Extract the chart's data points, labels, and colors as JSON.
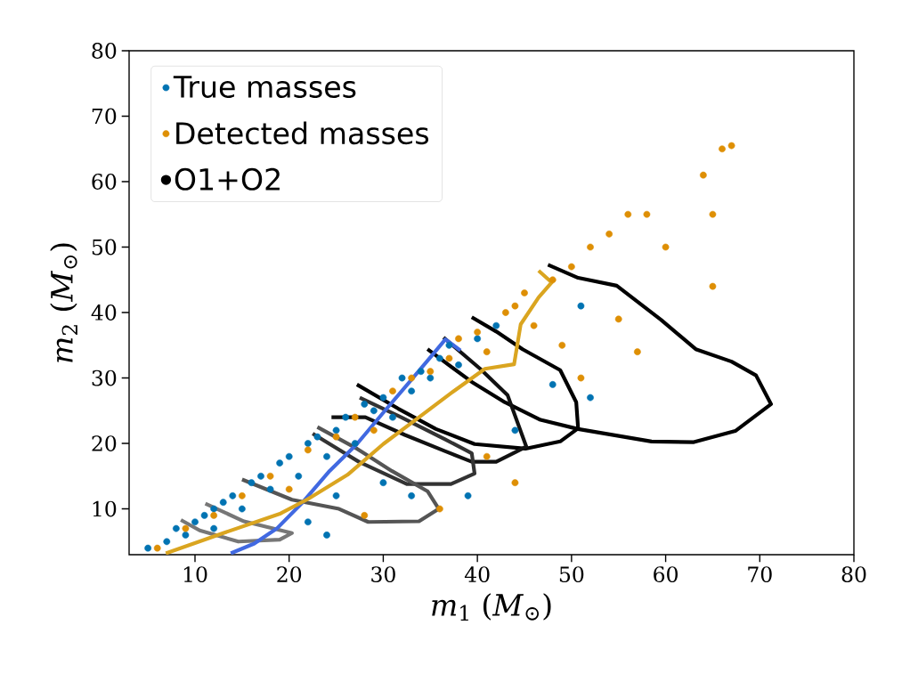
{
  "chart_data": {
    "type": "scatter",
    "xlabel": "*m*$_{1}$ (*M*$_{⊙}$)",
    "ylabel": "*m*$_{2}$ (*M*$_{⊙}$)",
    "xlim": [
      3,
      80
    ],
    "ylim": [
      3,
      80
    ],
    "xticks": [
      10,
      20,
      30,
      40,
      50,
      60,
      70,
      80
    ],
    "yticks": [
      10,
      20,
      30,
      40,
      50,
      60,
      70,
      80
    ],
    "grid": false,
    "legend": "top left",
    "marker": "circle",
    "line_style": "solid",
    "series": [
      {
        "name": "True masses",
        "color": "#0173b2",
        "x": [
          5,
          7,
          8,
          9,
          10,
          11,
          12,
          12,
          13,
          14,
          15,
          16,
          17,
          18,
          19,
          20,
          21,
          22,
          23,
          24,
          25,
          26,
          27,
          28,
          29,
          30,
          31,
          32,
          33,
          34,
          35,
          36,
          37,
          38,
          40,
          42,
          25,
          30,
          33,
          39,
          44,
          51,
          48,
          52,
          24,
          22
        ],
        "values": [
          4,
          5,
          7,
          6,
          8,
          9,
          10,
          7,
          11,
          12,
          10,
          14,
          15,
          13,
          17,
          18,
          15,
          20,
          21,
          18,
          22,
          24,
          20,
          26,
          25,
          27,
          24,
          30,
          28,
          31,
          30,
          33,
          35,
          32,
          36,
          38,
          12,
          14,
          12,
          12,
          22,
          41,
          29,
          27,
          6,
          8
        ]
      },
      {
        "name": "Detected masses",
        "color": "#de8f05",
        "x": [
          6,
          9,
          12,
          15,
          18,
          20,
          22,
          25,
          27,
          29,
          31,
          33,
          35,
          37,
          38,
          40,
          41,
          43,
          44,
          45,
          46,
          48,
          50,
          52,
          54,
          56,
          58,
          60,
          64,
          66,
          67,
          65,
          65,
          57,
          55,
          49,
          44,
          36,
          28,
          41,
          51
        ],
        "values": [
          4,
          7,
          9,
          12,
          15,
          13,
          19,
          21,
          24,
          22,
          28,
          30,
          31,
          33,
          36,
          37,
          34,
          40,
          41,
          43,
          38,
          45,
          47,
          50,
          52,
          55,
          55,
          50,
          61,
          65,
          65.5,
          55,
          44,
          34,
          39,
          35,
          14,
          10,
          9,
          18,
          30
        ]
      },
      {
        "name": "O1+O2",
        "color": "#000000",
        "type": "line",
        "marker": "none",
        "x": [
          47.5,
          50.7,
          54.8,
          59.5,
          63.2,
          67.0,
          69.6,
          71.2,
          67.4,
          63.0,
          58.5,
          50.7,
          46.7,
          42.9,
          39.4,
          34.7
        ],
        "values": [
          47.3,
          45.3,
          44.1,
          38.9,
          34.4,
          32.5,
          30.4,
          26.0,
          21.9,
          20.2,
          20.3,
          22.2,
          23.6,
          26.3,
          29.4,
          34.4
        ]
      },
      {
        "color": "#000000",
        "type": "line",
        "marker": "none",
        "x": [
          39.4,
          42.0,
          44.8,
          48.8,
          50.5,
          50.7,
          48.8,
          45.1,
          39.7,
          35.6,
          31.6,
          27.2
        ],
        "values": [
          39.3,
          37.1,
          34.4,
          31.2,
          26.3,
          22.3,
          20.3,
          19.2,
          19.9,
          22.2,
          25.3,
          29.0
        ]
      },
      {
        "color": "#111111",
        "type": "line",
        "marker": "none",
        "x": [
          36.4,
          40.3,
          43.2,
          45.2,
          42.0,
          39.4,
          36.6,
          32.3,
          28.1,
          24.5
        ],
        "values": [
          36.2,
          31.4,
          27.4,
          19.5,
          17.2,
          17.2,
          18.8,
          21.3,
          24.0,
          24
        ]
      },
      {
        "color": "#333333",
        "type": "line",
        "marker": "none",
        "x": [
          27.5,
          31.9,
          36.6,
          39.4,
          39.7,
          37.2,
          32.5,
          27.4,
          22.5
        ],
        "values": [
          27,
          24.0,
          20.6,
          18.5,
          15.4,
          13.8,
          13.8,
          17.2,
          21.5
        ]
      },
      {
        "color": "#555555",
        "type": "line",
        "marker": "none",
        "x": [
          23,
          27.2,
          30.9,
          34.7,
          35.9,
          33.8,
          28.4,
          25.3,
          20.3,
          15
        ],
        "values": [
          22.5,
          19.2,
          15.8,
          12.7,
          10.0,
          8.1,
          8.0,
          10.0,
          11.4,
          14.5
        ]
      },
      {
        "color": "#777777",
        "type": "line",
        "marker": "none",
        "x": [
          11.1,
          15.2,
          20.3,
          19.0,
          14.6,
          10.5,
          8.5
        ],
        "values": [
          10.8,
          8.1,
          6.3,
          5.3,
          5.0,
          6.7,
          8.3
        ]
      },
      {
        "color": "#4169e1",
        "type": "line",
        "marker": "none",
        "x": [
          13.8,
          16.3,
          18.7,
          21.5,
          24.3,
          27.2,
          30.0,
          32.8,
          35.2,
          36.6,
          38.2
        ],
        "values": [
          3.2,
          4.7,
          7.0,
          11.1,
          15.8,
          19.9,
          24.7,
          29.4,
          33.5,
          35.9,
          34.2
        ]
      },
      {
        "color": "#daa520",
        "type": "line",
        "marker": "none",
        "x": [
          6.9,
          13.0,
          19.1,
          22.0,
          26.2,
          30.0,
          33.8,
          37.5,
          40.8,
          43.9,
          44.6,
          46.5,
          47.9,
          46.5
        ],
        "values": [
          3.2,
          6.3,
          9.3,
          11.5,
          15.2,
          19.9,
          24.0,
          28.0,
          31.4,
          32.1,
          38.2,
          42.3,
          44.6,
          46.4
        ]
      }
    ]
  }
}
